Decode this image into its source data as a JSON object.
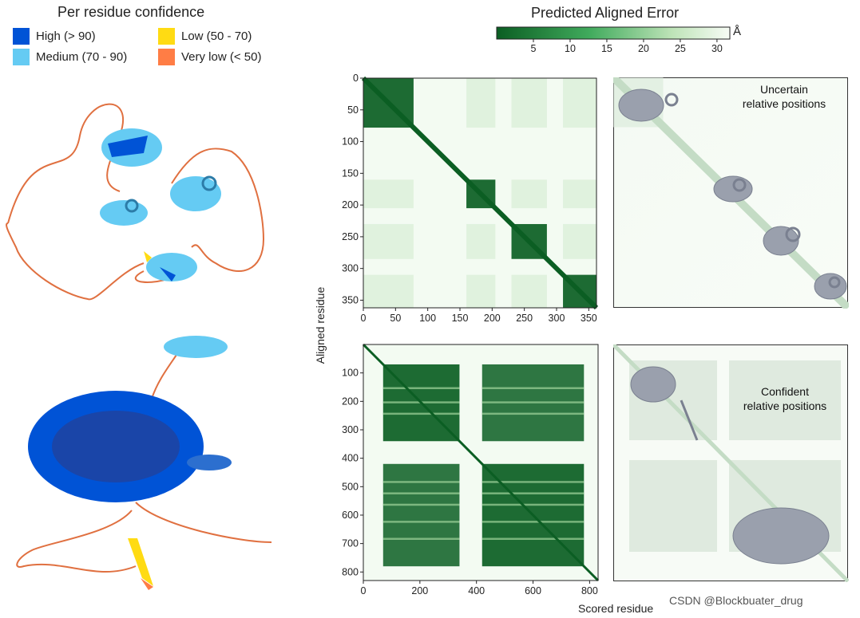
{
  "legend": {
    "title": "Per residue confidence",
    "items": [
      {
        "label": "High (> 90)",
        "color": "#0053d6"
      },
      {
        "label": "Medium (70 - 90)",
        "color": "#65cbf3"
      },
      {
        "label": "Low (50 - 70)",
        "color": "#ffdb13"
      },
      {
        "label": "Very low (< 50)",
        "color": "#ff7d45"
      }
    ]
  },
  "pae": {
    "title": "Predicted Aligned Error",
    "colorbar_ticks": [
      "5",
      "10",
      "15",
      "20",
      "25",
      "30"
    ],
    "unit": "Å",
    "colors": {
      "dark": "#0b5e23",
      "mid": "#41ab5d",
      "light": "#f3fbf2",
      "gray_green": "#c7d7cb",
      "protein": "#9aa0ad"
    }
  },
  "chart_data": [
    {
      "type": "heatmap",
      "title": "Predicted Aligned Error",
      "ylabel": "Aligned residue",
      "xlabel": "Scored residue",
      "xlim": [
        0,
        362
      ],
      "ylim": [
        0,
        362
      ],
      "x_ticks": [
        "0",
        "50",
        "100",
        "150",
        "200",
        "250",
        "300",
        "350"
      ],
      "y_ticks": [
        "0",
        "50",
        "100",
        "150",
        "200",
        "250",
        "300",
        "350"
      ],
      "domains": [
        [
          0,
          78
        ],
        [
          160,
          205
        ],
        [
          230,
          285
        ],
        [
          310,
          362
        ]
      ],
      "annotation": [
        "Uncertain",
        "relative positions"
      ]
    },
    {
      "type": "heatmap",
      "ylabel": "Aligned residue",
      "xlabel": "Scored residue",
      "xlim": [
        0,
        830
      ],
      "ylim": [
        0,
        830
      ],
      "x_ticks": [
        "0",
        "200",
        "400",
        "600",
        "800"
      ],
      "y_ticks": [
        "100",
        "200",
        "300",
        "400",
        "500",
        "600",
        "700",
        "800"
      ],
      "domains": [
        [
          70,
          340
        ],
        [
          420,
          780
        ]
      ],
      "annotation": [
        "Confident",
        "relative positions"
      ]
    }
  ],
  "axis": {
    "y_label": "Aligned residue",
    "x_label": "Scored residue"
  },
  "watermark": "CSDN @Blockbuater_drug"
}
